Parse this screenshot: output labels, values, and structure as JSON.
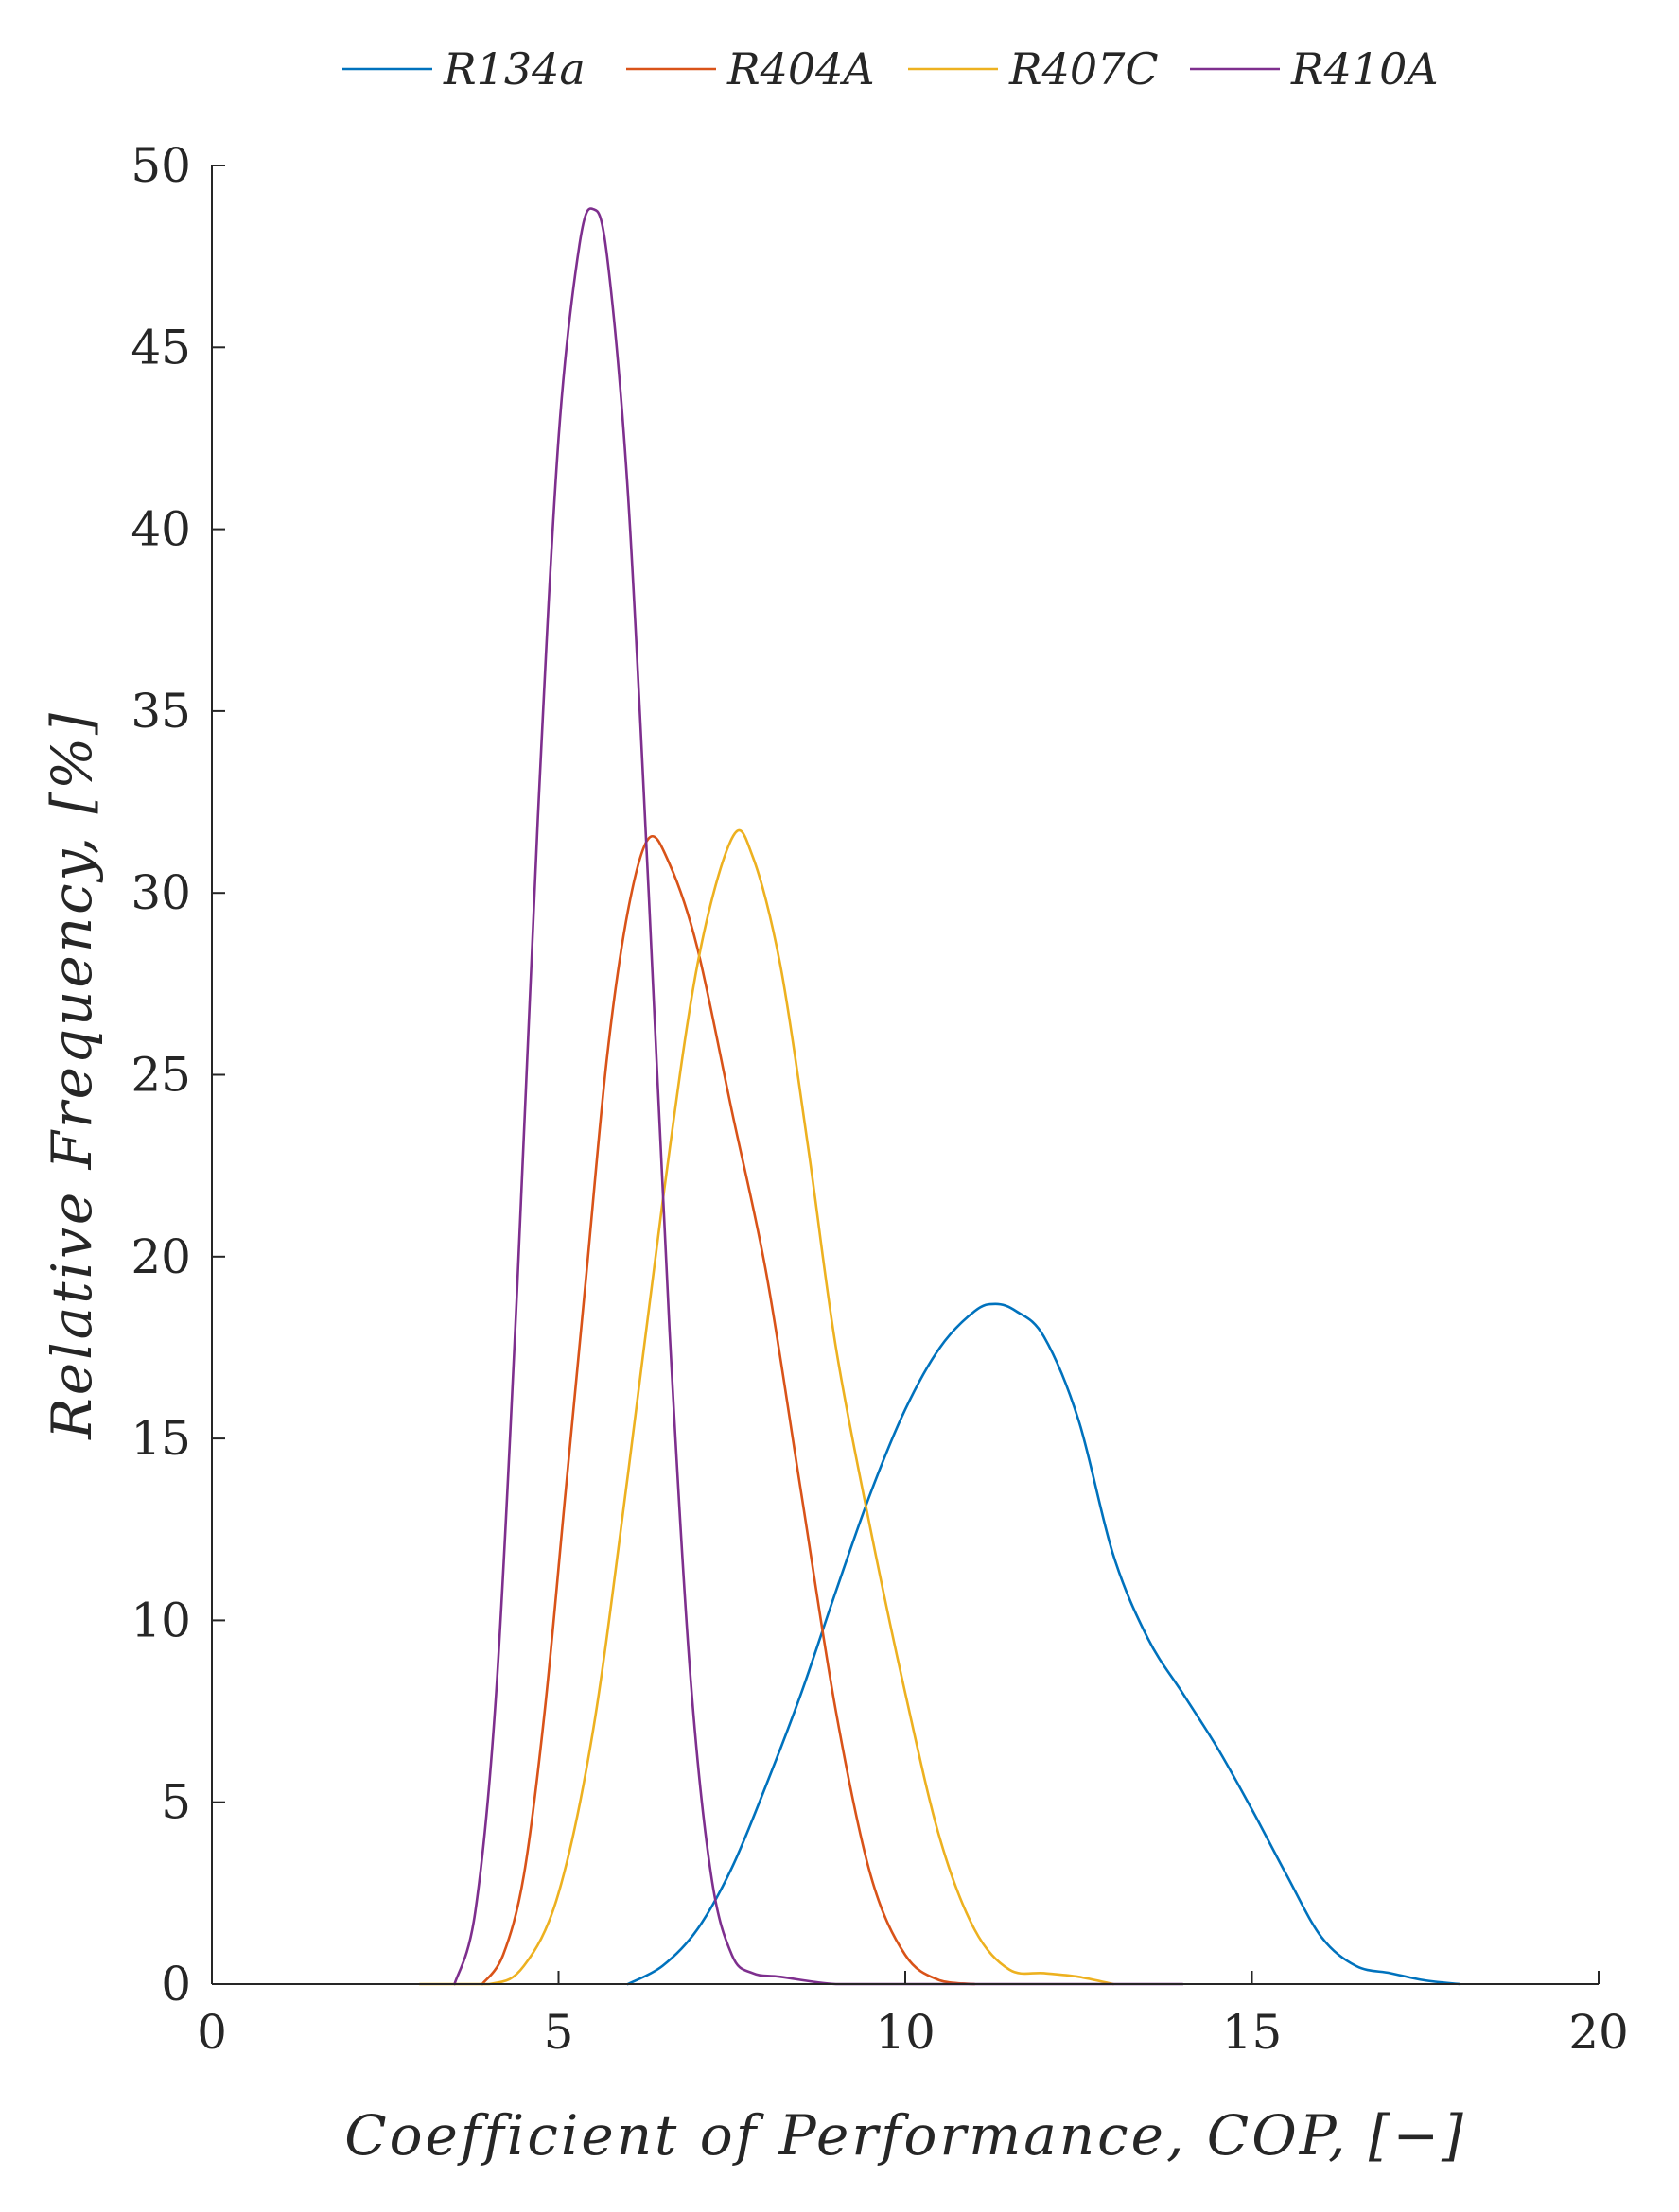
{
  "chart_data": {
    "type": "line",
    "title": "",
    "xlabel": "Coefficient of Performance, COP, [−]",
    "ylabel": "Relative Frequency, [%]",
    "xlim": [
      0,
      20
    ],
    "ylim": [
      0,
      50
    ],
    "xticks": [
      0,
      5,
      10,
      15,
      20
    ],
    "yticks": [
      0,
      5,
      10,
      15,
      20,
      25,
      30,
      35,
      40,
      45,
      50
    ],
    "grid": false,
    "legend_position": "top-center",
    "series": [
      {
        "name": "R134a",
        "color": "#0072BD",
        "points": [
          [
            6.0,
            0
          ],
          [
            6.5,
            0.5
          ],
          [
            7.0,
            1.5
          ],
          [
            7.5,
            3.2
          ],
          [
            8.0,
            5.5
          ],
          [
            8.5,
            8.0
          ],
          [
            9.0,
            10.8
          ],
          [
            9.5,
            13.5
          ],
          [
            10.0,
            15.8
          ],
          [
            10.5,
            17.5
          ],
          [
            11.0,
            18.5
          ],
          [
            11.3,
            18.7
          ],
          [
            11.6,
            18.5
          ],
          [
            12.0,
            17.8
          ],
          [
            12.5,
            15.5
          ],
          [
            13.0,
            11.8
          ],
          [
            13.5,
            9.5
          ],
          [
            14.0,
            8.0
          ],
          [
            14.5,
            6.5
          ],
          [
            15.0,
            4.8
          ],
          [
            15.5,
            3.0
          ],
          [
            16.0,
            1.3
          ],
          [
            16.5,
            0.5
          ],
          [
            17.0,
            0.3
          ],
          [
            17.5,
            0.1
          ],
          [
            18.0,
            0
          ]
        ]
      },
      {
        "name": "R404A",
        "color": "#D95319",
        "points": [
          [
            3.9,
            0
          ],
          [
            4.2,
            0.8
          ],
          [
            4.5,
            3.0
          ],
          [
            4.8,
            7.5
          ],
          [
            5.1,
            13.5
          ],
          [
            5.4,
            19.5
          ],
          [
            5.7,
            25.5
          ],
          [
            6.0,
            29.5
          ],
          [
            6.3,
            31.5
          ],
          [
            6.6,
            30.8
          ],
          [
            7.0,
            28.5
          ],
          [
            7.5,
            24.0
          ],
          [
            8.0,
            19.5
          ],
          [
            8.5,
            13.5
          ],
          [
            9.0,
            7.5
          ],
          [
            9.5,
            3.0
          ],
          [
            10.0,
            0.8
          ],
          [
            10.5,
            0.1
          ],
          [
            11.0,
            0
          ]
        ]
      },
      {
        "name": "R407C",
        "color": "#EDB120",
        "points": [
          [
            3.0,
            0
          ],
          [
            4.0,
            0
          ],
          [
            4.5,
            0.5
          ],
          [
            5.0,
            2.5
          ],
          [
            5.5,
            7.0
          ],
          [
            6.0,
            14.0
          ],
          [
            6.5,
            21.5
          ],
          [
            7.0,
            28.0
          ],
          [
            7.5,
            31.5
          ],
          [
            7.8,
            31.0
          ],
          [
            8.2,
            28.0
          ],
          [
            8.6,
            23.0
          ],
          [
            9.0,
            17.5
          ],
          [
            9.5,
            12.5
          ],
          [
            10.0,
            8.0
          ],
          [
            10.5,
            4.0
          ],
          [
            11.0,
            1.5
          ],
          [
            11.5,
            0.4
          ],
          [
            12.0,
            0.3
          ],
          [
            12.5,
            0.2
          ],
          [
            13.0,
            0
          ]
        ]
      },
      {
        "name": "R410A",
        "color": "#7E2F8E",
        "points": [
          [
            3.5,
            0
          ],
          [
            3.8,
            2.0
          ],
          [
            4.1,
            8.0
          ],
          [
            4.4,
            19.0
          ],
          [
            4.7,
            32.0
          ],
          [
            5.0,
            42.5
          ],
          [
            5.3,
            47.8
          ],
          [
            5.5,
            48.8
          ],
          [
            5.7,
            47.5
          ],
          [
            6.0,
            41.0
          ],
          [
            6.3,
            30.0
          ],
          [
            6.6,
            18.0
          ],
          [
            6.9,
            8.5
          ],
          [
            7.2,
            3.0
          ],
          [
            7.5,
            0.8
          ],
          [
            7.8,
            0.3
          ],
          [
            8.2,
            0.2
          ],
          [
            9.0,
            0
          ],
          [
            10.0,
            0
          ],
          [
            14.0,
            0
          ]
        ]
      }
    ]
  }
}
